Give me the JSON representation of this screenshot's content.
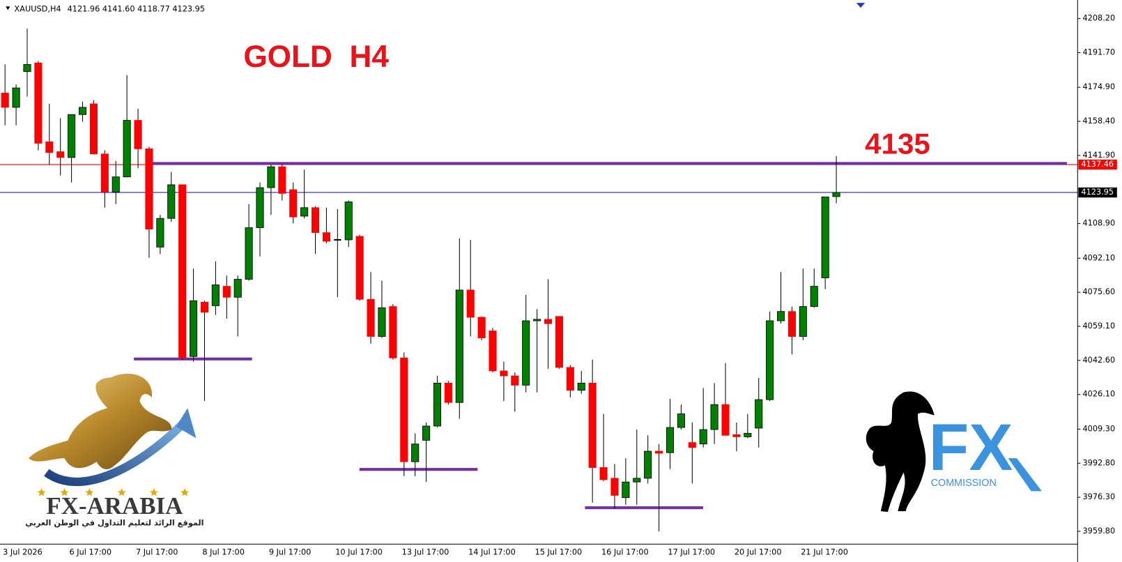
{
  "chart_data": {
    "type": "candlestick",
    "symbol": "XAUUSD,H4",
    "quote": "4121.96 4141.60 4118.77 4123.95",
    "title": "GOLD  H4",
    "annotation": "4135",
    "categories": [
      "3 Jul 2026",
      null,
      null,
      null,
      null,
      null,
      "6 Jul 17:00",
      null,
      null,
      null,
      null,
      null,
      "7 Jul 17:00",
      null,
      null,
      null,
      null,
      null,
      "8 Jul 17:00",
      null,
      null,
      null,
      null,
      null,
      "9 Jul 17:00",
      null,
      null,
      null,
      null,
      null,
      "10 Jul 17:00",
      null,
      null,
      null,
      null,
      null,
      "13 Jul 17:00",
      null,
      null,
      null,
      null,
      null,
      "14 Jul 17:00",
      null,
      null,
      null,
      null,
      null,
      "15 Jul 17:00",
      null,
      null,
      null,
      null,
      null,
      "16 Jul 17:00",
      null,
      null,
      null,
      null,
      null,
      "17 Jul 17:00",
      null,
      null,
      null,
      null,
      null,
      "20 Jul 17:00",
      null,
      null,
      null,
      null,
      null,
      "21 Jul 17:00",
      null,
      null,
      null
    ],
    "open": [
      4172.1,
      4165.2,
      4182.5,
      4186.7,
      4148.5,
      4143.7,
      4140.9,
      4161.7,
      4166.9,
      4142.6,
      4124.2,
      4131.5,
      4158.9,
      4145.1,
      4097.5,
      4111.4,
      4127.7,
      4044.5,
      4070.8,
      4069.1,
      4078.5,
      4073.2,
      4081.9,
      4106.9,
      4126.3,
      4136.4,
      4125.3,
      4112.5,
      4116.6,
      4104.5,
      4101.0,
      4101.0,
      4102.7,
      4072.2,
      4054.2,
      4068.7,
      4043.8,
      3993.5,
      4003.9,
      4010.8,
      4031.6,
      4022.2,
      4076.7,
      4063.5,
      4056.9,
      4037.5,
      4035.1,
      4030.6,
      4061.8,
      4062.5,
      4063.9,
      4039.2,
      4028.1,
      4031.6,
      3990.7,
      3985.5,
      3976.1,
      3983.7,
      3985.5,
      3998.6,
      3997.9,
      4010.1,
      4002.8,
      4002.1,
      4009.1,
      4021.2,
      4006.6,
      4005.6,
      4009.8,
      4023.6,
      4061.8,
      4066.3,
      4054.2,
      4068.7,
      4082.6,
      4121.96
    ],
    "high": [
      4186.0,
      4176.3,
      4203.3,
      4187.7,
      4166.9,
      4160.0,
      4161.7,
      4168.0,
      4168.7,
      4144.4,
      4139.2,
      4180.8,
      4164.5,
      4146.1,
      4113.1,
      4133.9,
      4127.7,
      4087.1,
      4071.5,
      4090.6,
      4083.7,
      4083.7,
      4118.3,
      4128.8,
      4137.4,
      4137.4,
      4128.8,
      4135.0,
      4117.3,
      4116.6,
      4115.9,
      4120.1,
      4103.4,
      4085.4,
      4081.2,
      4069.8,
      4046.5,
      4007.3,
      4012.5,
      4035.1,
      4032.6,
      4101.7,
      4101.0,
      4063.9,
      4058.3,
      4042.0,
      4036.8,
      4074.3,
      4067.4,
      4081.9,
      4063.9,
      4040.3,
      4037.5,
      4043.0,
      4016.7,
      3992.4,
      3995.2,
      4009.1,
      4006.3,
      4002.1,
      4024.0,
      4021.2,
      4012.5,
      4029.2,
      4031.6,
      4041.3,
      4012.5,
      4016.7,
      4034.1,
      4066.3,
      4085.4,
      4068.7,
      4087.1,
      4087.1,
      4121.8,
      4141.6
    ],
    "low": [
      4156.5,
      4156.5,
      4170.4,
      4144.4,
      4137.4,
      4132.2,
      4128.8,
      4158.2,
      4142.6,
      4116.6,
      4118.3,
      4131.5,
      4135.7,
      4092.3,
      4094.1,
      4109.7,
      4043.0,
      4042.0,
      4022.9,
      4064.6,
      4062.8,
      4054.2,
      4081.2,
      4093.0,
      4113.1,
      4120.1,
      4109.0,
      4111.4,
      4094.1,
      4099.3,
      4073.2,
      4097.5,
      4071.5,
      4050.7,
      4053.5,
      4043.0,
      3986.5,
      3986.5,
      3983.7,
      4010.1,
      4021.2,
      4014.3,
      4054.2,
      4052.4,
      4036.8,
      4022.9,
      4017.7,
      4027.1,
      4027.1,
      4038.6,
      4038.6,
      4024.7,
      4026.4,
      3973.7,
      3984.1,
      3970.9,
      3972.7,
      3972.7,
      3983.0,
      3959.8,
      3990.0,
      4009.1,
      3983.0,
      4000.4,
      4002.1,
      4006.3,
      3998.6,
      4004.9,
      4000.4,
      4022.9,
      4060.4,
      4045.5,
      4052.4,
      4068.1,
      4077.1,
      4118.77
    ],
    "close": [
      4165.2,
      4174.6,
      4186.0,
      4147.8,
      4143.3,
      4140.9,
      4161.7,
      4165.2,
      4142.6,
      4124.2,
      4131.5,
      4158.9,
      4145.1,
      4106.2,
      4111.4,
      4127.7,
      4043.8,
      4071.5,
      4065.9,
      4079.2,
      4073.2,
      4081.9,
      4106.9,
      4126.3,
      4136.4,
      4123.5,
      4112.1,
      4116.6,
      4104.5,
      4100.3,
      4101.0,
      4119.4,
      4072.2,
      4054.2,
      4068.1,
      4043.8,
      3993.5,
      4002.1,
      4010.8,
      4031.6,
      4022.2,
      4076.7,
      4063.5,
      4053.5,
      4037.5,
      4035.1,
      4030.6,
      4061.8,
      4062.5,
      4060.4,
      4039.2,
      4028.1,
      4031.6,
      3990.7,
      3984.8,
      3977.2,
      3983.7,
      3985.5,
      3998.6,
      3997.6,
      4010.1,
      4016.7,
      4000.4,
      4009.1,
      4021.2,
      4006.3,
      4005.6,
      4007.3,
      4023.6,
      4061.8,
      4066.3,
      4054.2,
      4068.7,
      4078.5,
      4121.8,
      4123.95
    ],
    "up_color": "#008000",
    "down_color": "#ff0000",
    "wick_color": "#000000",
    "ylim": [
      3953.6,
      4217.2
    ],
    "yticks": [
      {
        "value": 4208.2,
        "label": "4208.20"
      },
      {
        "value": 4191.7,
        "label": "4191.70"
      },
      {
        "value": 4174.9,
        "label": "4174.90"
      },
      {
        "value": 4158.4,
        "label": "4158.40"
      },
      {
        "value": 4141.9,
        "label": "4141.90"
      },
      {
        "value": 4108.9,
        "label": "4108.90"
      },
      {
        "value": 4092.1,
        "label": "4092.10"
      },
      {
        "value": 4075.6,
        "label": "4075.60"
      },
      {
        "value": 4059.1,
        "label": "4059.10"
      },
      {
        "value": 4042.6,
        "label": "4042.60"
      },
      {
        "value": 4026.1,
        "label": "4026.10"
      },
      {
        "value": 4009.3,
        "label": "4009.30"
      },
      {
        "value": 3992.8,
        "label": "3992.80"
      },
      {
        "value": 3976.3,
        "label": "3976.30"
      },
      {
        "value": 3959.8,
        "label": "3959.80"
      }
    ],
    "price_lines": [
      {
        "value": 4137.46,
        "color": "#ff0000",
        "label_color": "#ff0000"
      },
      {
        "value": 4123.95,
        "color": "#0000cc",
        "label_color": "#000000"
      }
    ],
    "levels": [
      {
        "value": 4138,
        "color": "#7030a0"
      },
      {
        "value": 4043.3,
        "color": "#7030a0"
      },
      {
        "value": 3989.8,
        "color": "#7030a0"
      },
      {
        "value": 3971.2,
        "color": "#7030a0"
      }
    ],
    "grid": false
  },
  "logos": {
    "fx_arabia": {
      "name": "FX-ARABIA",
      "tagline": "الموقع الرائد لتعليم التداول في الوطن العربي"
    },
    "fx_commission": {
      "mark": "FX",
      "word": "COMMISSION"
    }
  }
}
